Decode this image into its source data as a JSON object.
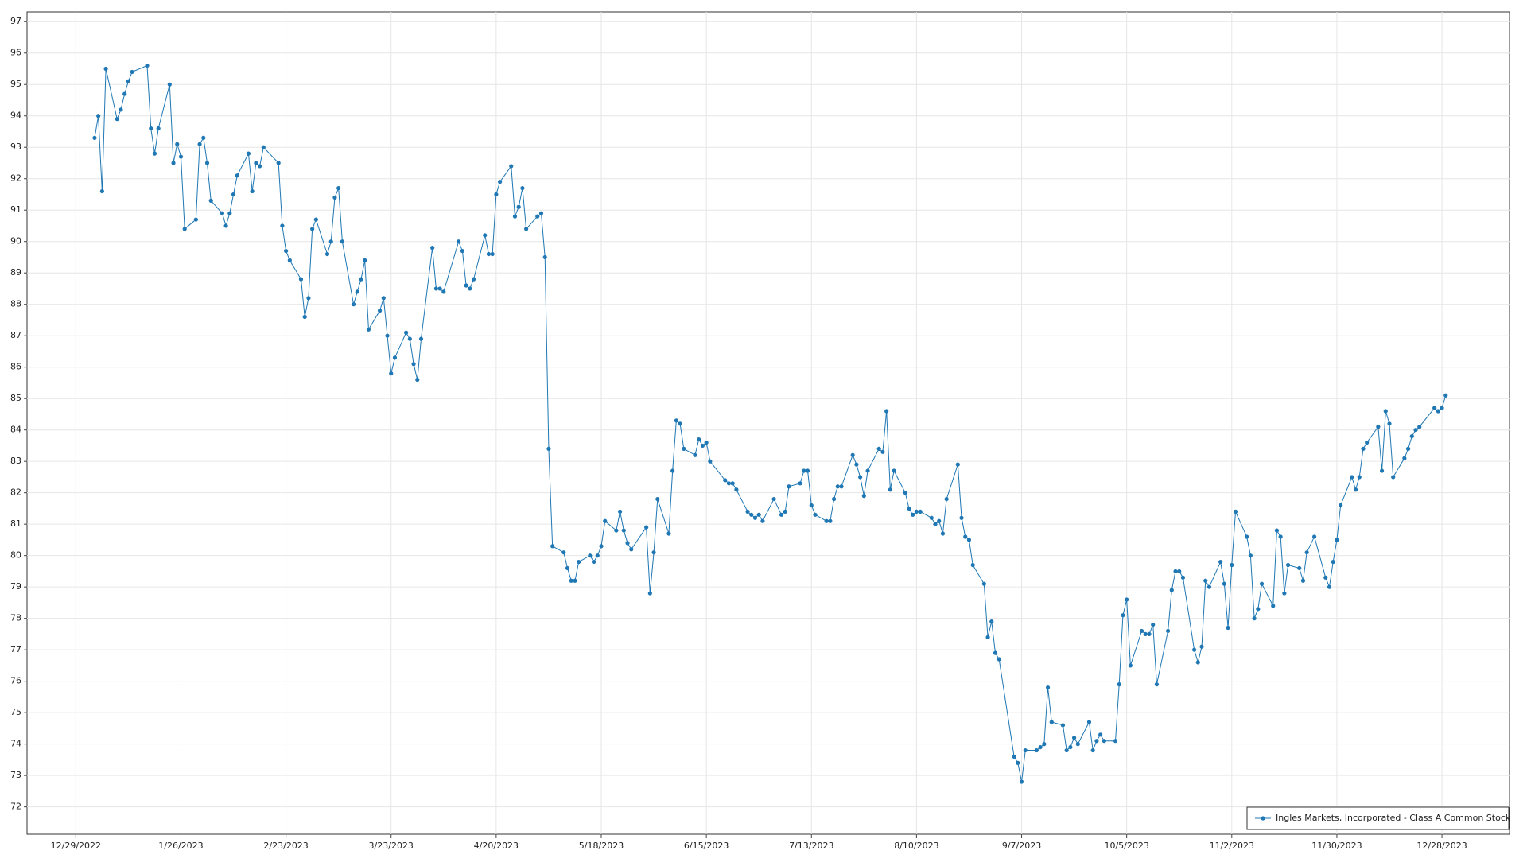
{
  "chart_data": {
    "type": "line",
    "x": [
      "1/3/2023",
      "1/4/2023",
      "1/5/2023",
      "1/6/2023",
      "1/9/2023",
      "1/10/2023",
      "1/11/2023",
      "1/12/2023",
      "1/13/2023",
      "1/17/2023",
      "1/18/2023",
      "1/19/2023",
      "1/20/2023",
      "1/23/2023",
      "1/24/2023",
      "1/25/2023",
      "1/26/2023",
      "1/27/2023",
      "1/30/2023",
      "1/31/2023",
      "2/1/2023",
      "2/2/2023",
      "2/3/2023",
      "2/6/2023",
      "2/7/2023",
      "2/8/2023",
      "2/9/2023",
      "2/10/2023",
      "2/13/2023",
      "2/14/2023",
      "2/15/2023",
      "2/16/2023",
      "2/17/2023",
      "2/21/2023",
      "2/22/2023",
      "2/23/2023",
      "2/24/2023",
      "2/27/2023",
      "2/28/2023",
      "3/1/2023",
      "3/2/2023",
      "3/3/2023",
      "3/6/2023",
      "3/7/2023",
      "3/8/2023",
      "3/9/2023",
      "3/10/2023",
      "3/13/2023",
      "3/14/2023",
      "3/15/2023",
      "3/16/2023",
      "3/17/2023",
      "3/20/2023",
      "3/21/2023",
      "3/22/2023",
      "3/23/2023",
      "3/24/2023",
      "3/27/2023",
      "3/28/2023",
      "3/29/2023",
      "3/30/2023",
      "3/31/2023",
      "4/3/2023",
      "4/4/2023",
      "4/5/2023",
      "4/6/2023",
      "4/10/2023",
      "4/11/2023",
      "4/12/2023",
      "4/13/2023",
      "4/14/2023",
      "4/17/2023",
      "4/18/2023",
      "4/19/2023",
      "4/20/2023",
      "4/21/2023",
      "4/24/2023",
      "4/25/2023",
      "4/26/2023",
      "4/27/2023",
      "4/28/2023",
      "5/1/2023",
      "5/2/2023",
      "5/3/2023",
      "5/4/2023",
      "5/5/2023",
      "5/8/2023",
      "5/9/2023",
      "5/10/2023",
      "5/11/2023",
      "5/12/2023",
      "5/15/2023",
      "5/16/2023",
      "5/17/2023",
      "5/18/2023",
      "5/19/2023",
      "5/22/2023",
      "5/23/2023",
      "5/24/2023",
      "5/25/2023",
      "5/26/2023",
      "5/30/2023",
      "5/31/2023",
      "6/1/2023",
      "6/2/2023",
      "6/5/2023",
      "6/6/2023",
      "6/7/2023",
      "6/8/2023",
      "6/9/2023",
      "6/12/2023",
      "6/13/2023",
      "6/14/2023",
      "6/15/2023",
      "6/16/2023",
      "6/20/2023",
      "6/21/2023",
      "6/22/2023",
      "6/23/2023",
      "6/26/2023",
      "6/27/2023",
      "6/28/2023",
      "6/29/2023",
      "6/30/2023",
      "7/3/2023",
      "7/5/2023",
      "7/6/2023",
      "7/7/2023",
      "7/10/2023",
      "7/11/2023",
      "7/12/2023",
      "7/13/2023",
      "7/14/2023",
      "7/17/2023",
      "7/18/2023",
      "7/19/2023",
      "7/20/2023",
      "7/21/2023",
      "7/24/2023",
      "7/25/2023",
      "7/26/2023",
      "7/27/2023",
      "7/28/2023",
      "7/31/2023",
      "8/1/2023",
      "8/2/2023",
      "8/3/2023",
      "8/4/2023",
      "8/7/2023",
      "8/8/2023",
      "8/9/2023",
      "8/10/2023",
      "8/11/2023",
      "8/14/2023",
      "8/15/2023",
      "8/16/2023",
      "8/17/2023",
      "8/18/2023",
      "8/21/2023",
      "8/22/2023",
      "8/23/2023",
      "8/24/2023",
      "8/25/2023",
      "8/28/2023",
      "8/29/2023",
      "8/30/2023",
      "8/31/2023",
      "9/1/2023",
      "9/5/2023",
      "9/6/2023",
      "9/7/2023",
      "9/8/2023",
      "9/11/2023",
      "9/12/2023",
      "9/13/2023",
      "9/14/2023",
      "9/15/2023",
      "9/18/2023",
      "9/19/2023",
      "9/20/2023",
      "9/21/2023",
      "9/22/2023",
      "9/25/2023",
      "9/26/2023",
      "9/27/2023",
      "9/28/2023",
      "9/29/2023",
      "10/2/2023",
      "10/3/2023",
      "10/4/2023",
      "10/5/2023",
      "10/6/2023",
      "10/9/2023",
      "10/10/2023",
      "10/11/2023",
      "10/12/2023",
      "10/13/2023",
      "10/16/2023",
      "10/17/2023",
      "10/18/2023",
      "10/19/2023",
      "10/20/2023",
      "10/23/2023",
      "10/24/2023",
      "10/25/2023",
      "10/26/2023",
      "10/27/2023",
      "10/30/2023",
      "10/31/2023",
      "11/1/2023",
      "11/2/2023",
      "11/3/2023",
      "11/6/2023",
      "11/7/2023",
      "11/8/2023",
      "11/9/2023",
      "11/10/2023",
      "11/13/2023",
      "11/14/2023",
      "11/15/2023",
      "11/16/2023",
      "11/17/2023",
      "11/20/2023",
      "11/21/2023",
      "11/22/2023",
      "11/24/2023",
      "11/27/2023",
      "11/28/2023",
      "11/29/2023",
      "11/30/2023",
      "12/1/2023",
      "12/4/2023",
      "12/5/2023",
      "12/6/2023",
      "12/7/2023",
      "12/8/2023",
      "12/11/2023",
      "12/12/2023",
      "12/13/2023",
      "12/14/2023",
      "12/15/2023",
      "12/18/2023",
      "12/19/2023",
      "12/20/2023",
      "12/21/2023",
      "12/22/2023",
      "12/26/2023",
      "12/27/2023",
      "12/28/2023",
      "12/29/2023"
    ],
    "series": [
      {
        "name": "Ingles Markets, Incorporated - Class A Common Stock",
        "color": "#1f77b4",
        "values": [
          93.3,
          94.0,
          91.6,
          95.5,
          93.9,
          94.2,
          94.7,
          95.1,
          95.4,
          95.6,
          93.6,
          92.8,
          93.6,
          95.0,
          92.5,
          93.1,
          92.7,
          90.4,
          90.7,
          93.1,
          93.3,
          92.5,
          91.3,
          90.9,
          90.5,
          90.9,
          91.5,
          92.1,
          92.8,
          91.6,
          92.5,
          92.4,
          93.0,
          92.5,
          90.5,
          89.7,
          89.4,
          88.8,
          87.6,
          88.2,
          90.4,
          90.7,
          89.6,
          90.0,
          91.4,
          91.7,
          90.0,
          88.0,
          88.4,
          88.8,
          89.4,
          87.2,
          87.8,
          88.2,
          87.0,
          85.8,
          86.3,
          87.1,
          86.9,
          86.1,
          85.6,
          86.9,
          89.8,
          88.5,
          88.5,
          88.4,
          90.0,
          89.7,
          88.6,
          88.5,
          88.8,
          90.2,
          89.6,
          89.6,
          91.5,
          91.9,
          92.4,
          90.8,
          91.1,
          91.7,
          90.4,
          90.8,
          90.9,
          89.5,
          83.4,
          80.3,
          80.1,
          79.6,
          79.2,
          79.2,
          79.8,
          80.0,
          79.8,
          80.0,
          80.3,
          81.1,
          80.8,
          81.4,
          80.8,
          80.4,
          80.2,
          80.9,
          78.8,
          80.1,
          81.8,
          80.7,
          82.7,
          84.3,
          84.2,
          83.4,
          83.2,
          83.7,
          83.5,
          83.6,
          83.0,
          82.4,
          82.3,
          82.3,
          82.1,
          81.4,
          81.3,
          81.2,
          81.3,
          81.1,
          81.8,
          81.3,
          81.4,
          82.2,
          82.3,
          82.7,
          82.7,
          81.6,
          81.3,
          81.1,
          81.1,
          81.8,
          82.2,
          82.2,
          83.2,
          82.9,
          82.5,
          81.9,
          82.7,
          83.4,
          83.3,
          84.6,
          82.1,
          82.7,
          82.0,
          81.5,
          81.3,
          81.4,
          81.4,
          81.2,
          81.0,
          81.1,
          80.7,
          81.8,
          82.9,
          81.2,
          80.6,
          80.5,
          79.7,
          79.1,
          77.4,
          77.9,
          76.9,
          76.7,
          73.6,
          73.4,
          72.8,
          73.8,
          73.8,
          73.9,
          74.0,
          75.8,
          74.7,
          74.6,
          73.8,
          73.9,
          74.2,
          74.0,
          74.7,
          73.8,
          74.1,
          74.3,
          74.1,
          74.1,
          75.9,
          78.1,
          78.6,
          76.5,
          77.6,
          77.5,
          77.5,
          77.8,
          75.9,
          77.6,
          78.9,
          79.5,
          79.5,
          79.3,
          77.0,
          76.6,
          77.1,
          79.2,
          79.0,
          79.8,
          79.1,
          77.7,
          79.7,
          81.4,
          80.6,
          80.0,
          78.0,
          78.3,
          79.1,
          78.4,
          80.8,
          80.6,
          78.8,
          79.7,
          79.6,
          79.2,
          80.1,
          80.6,
          79.3,
          79.0,
          79.8,
          80.5,
          81.6,
          82.5,
          82.1,
          82.5,
          83.4,
          83.6,
          84.1,
          82.7,
          84.6,
          84.2,
          82.5,
          83.1,
          83.4,
          83.8,
          84.0,
          84.1,
          84.7,
          84.6,
          84.7,
          85.1
        ]
      }
    ],
    "xlim": [
      "12/16/2022",
      "1/15/2024"
    ],
    "xticks": [
      "12/29/2022",
      "1/26/2023",
      "2/23/2023",
      "3/23/2023",
      "4/20/2023",
      "5/18/2023",
      "6/15/2023",
      "7/13/2023",
      "8/10/2023",
      "9/7/2023",
      "10/5/2023",
      "11/2/2023",
      "11/30/2023",
      "12/28/2023"
    ],
    "ylim": [
      71.13,
      97.31
    ],
    "yticks": [
      72,
      73,
      74,
      75,
      76,
      77,
      78,
      79,
      80,
      81,
      82,
      83,
      84,
      85,
      86,
      87,
      88,
      89,
      90,
      91,
      92,
      93,
      94,
      95,
      96,
      97
    ],
    "grid": true,
    "legend": "lower right"
  }
}
